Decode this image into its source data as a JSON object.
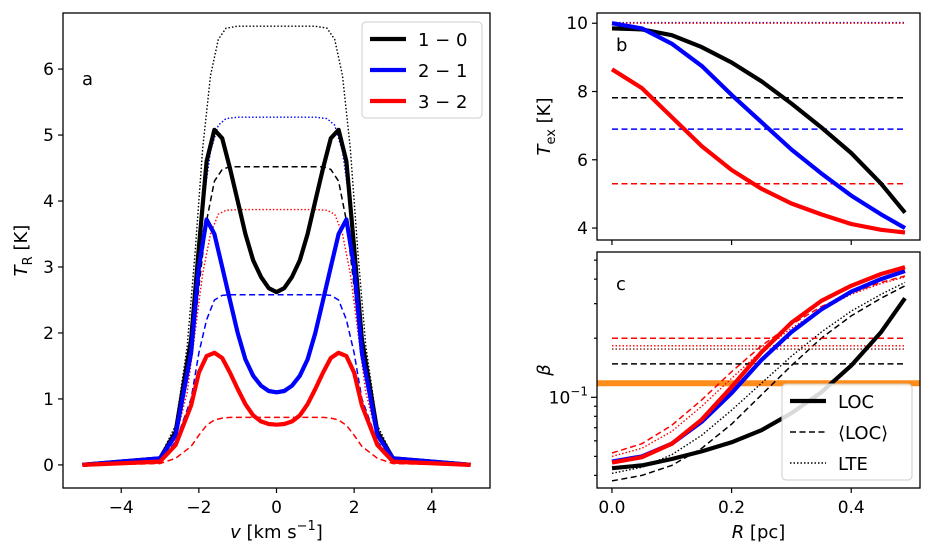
{
  "chart_data": [
    {
      "type": "line",
      "panel_label": "a",
      "xlabel": "v [km s^-1]",
      "ylabel": "T_R [K]",
      "xlim": [
        -5.5,
        5.5
      ],
      "ylim": [
        -0.35,
        6.85
      ],
      "xticks": [
        -4,
        -2,
        0,
        2,
        4
      ],
      "yticks": [
        0,
        1,
        2,
        3,
        4,
        5,
        6
      ],
      "legend_position": "top-right",
      "legend": [
        "1 − 0",
        "2 − 1",
        "3 − 2"
      ],
      "series": [
        {
          "name": "1 − 0",
          "style": "solid",
          "color": "#000000",
          "x": [
            -5,
            -3,
            -2.6,
            -2.2,
            -2,
            -1.8,
            -1.6,
            -1.4,
            -1.2,
            -1,
            -0.8,
            -0.6,
            -0.4,
            -0.2,
            0,
            0.2,
            0.4,
            0.6,
            0.8,
            1,
            1.2,
            1.4,
            1.6,
            1.8,
            2,
            2.2,
            2.6,
            3,
            5
          ],
          "y": [
            0,
            0.1,
            0.5,
            1.9,
            3.3,
            4.6,
            5.08,
            4.95,
            4.5,
            4.0,
            3.5,
            3.1,
            2.85,
            2.68,
            2.62,
            2.68,
            2.85,
            3.1,
            3.5,
            4.0,
            4.5,
            4.95,
            5.08,
            4.6,
            3.3,
            1.9,
            0.5,
            0.1,
            0
          ]
        },
        {
          "name": "2 − 1",
          "style": "solid",
          "color": "#0000ff",
          "x": [
            -5,
            -3,
            -2.6,
            -2.2,
            -2,
            -1.8,
            -1.6,
            -1.4,
            -1.2,
            -1,
            -0.8,
            -0.6,
            -0.4,
            -0.2,
            0,
            0.2,
            0.4,
            0.6,
            0.8,
            1,
            1.2,
            1.4,
            1.6,
            1.8,
            2,
            2.2,
            2.6,
            3,
            5
          ],
          "y": [
            0,
            0.1,
            0.45,
            1.7,
            3.0,
            3.72,
            3.5,
            3.0,
            2.5,
            2.0,
            1.6,
            1.35,
            1.2,
            1.12,
            1.1,
            1.12,
            1.2,
            1.35,
            1.6,
            2.0,
            2.5,
            3.0,
            3.5,
            3.72,
            3.0,
            1.7,
            0.45,
            0.1,
            0
          ]
        },
        {
          "name": "3 − 2",
          "style": "solid",
          "color": "#ff0000",
          "x": [
            -5,
            -3,
            -2.6,
            -2.2,
            -2,
            -1.8,
            -1.6,
            -1.4,
            -1.2,
            -1,
            -0.8,
            -0.6,
            -0.4,
            -0.2,
            0,
            0.2,
            0.4,
            0.6,
            0.8,
            1,
            1.2,
            1.4,
            1.6,
            1.8,
            2,
            2.2,
            2.6,
            3,
            5
          ],
          "y": [
            0,
            0.05,
            0.3,
            0.9,
            1.4,
            1.65,
            1.7,
            1.62,
            1.4,
            1.15,
            0.92,
            0.75,
            0.66,
            0.62,
            0.61,
            0.62,
            0.66,
            0.75,
            0.92,
            1.15,
            1.4,
            1.62,
            1.7,
            1.65,
            1.4,
            0.9,
            0.3,
            0.05,
            0
          ]
        },
        {
          "name": "",
          "style": "dashed",
          "color": "#000000",
          "x": [
            -5,
            -3,
            -2.6,
            -2.2,
            -2,
            -1.8,
            -1.6,
            -1.4,
            -1.2,
            -1,
            0,
            1,
            1.2,
            1.4,
            1.6,
            1.8,
            2,
            2.2,
            2.6,
            3,
            5
          ],
          "y": [
            0,
            0.1,
            0.5,
            1.6,
            2.7,
            3.7,
            4.3,
            4.48,
            4.52,
            4.52,
            4.52,
            4.52,
            4.52,
            4.48,
            4.3,
            3.7,
            2.7,
            1.6,
            0.5,
            0.1,
            0
          ]
        },
        {
          "name": "",
          "style": "dashed",
          "color": "#0000ff",
          "x": [
            -5,
            -3,
            -2.6,
            -2.2,
            -2,
            -1.8,
            -1.6,
            -1.4,
            -1.2,
            -1,
            0,
            1,
            1.2,
            1.4,
            1.6,
            1.8,
            2,
            2.2,
            2.6,
            3,
            5
          ],
          "y": [
            0,
            0.08,
            0.35,
            1.0,
            1.7,
            2.2,
            2.5,
            2.57,
            2.58,
            2.58,
            2.58,
            2.58,
            2.58,
            2.57,
            2.5,
            2.2,
            1.7,
            1.0,
            0.35,
            0.08,
            0
          ]
        },
        {
          "name": "",
          "style": "dashed",
          "color": "#ff0000",
          "x": [
            -5,
            -3,
            -2.6,
            -2.2,
            -2,
            -1.8,
            -1.6,
            -1.4,
            -1.2,
            -1,
            0,
            1,
            1.2,
            1.4,
            1.6,
            1.8,
            2,
            2.2,
            2.6,
            3,
            5
          ],
          "y": [
            0,
            0.02,
            0.1,
            0.28,
            0.45,
            0.6,
            0.68,
            0.71,
            0.72,
            0.72,
            0.72,
            0.72,
            0.72,
            0.71,
            0.68,
            0.6,
            0.45,
            0.28,
            0.1,
            0.02,
            0
          ]
        },
        {
          "name": "",
          "style": "dotted",
          "color": "#000000",
          "x": [
            -5,
            -3,
            -2.6,
            -2.3,
            -2.1,
            -1.9,
            -1.7,
            -1.5,
            -1.3,
            -1,
            0,
            1,
            1.3,
            1.5,
            1.7,
            1.9,
            2.1,
            2.3,
            2.6,
            3,
            5
          ],
          "y": [
            0,
            0.12,
            0.6,
            1.8,
            3.2,
            4.8,
            5.9,
            6.45,
            6.62,
            6.65,
            6.65,
            6.65,
            6.62,
            6.45,
            5.9,
            4.8,
            3.2,
            1.8,
            0.6,
            0.12,
            0
          ]
        },
        {
          "name": "",
          "style": "dotted",
          "color": "#0000ff",
          "x": [
            -5,
            -3,
            -2.6,
            -2.3,
            -2.1,
            -1.9,
            -1.7,
            -1.5,
            -1.3,
            -1,
            0,
            1,
            1.3,
            1.5,
            1.7,
            1.9,
            2.1,
            2.3,
            2.6,
            3,
            5
          ],
          "y": [
            0,
            0.1,
            0.5,
            1.5,
            2.7,
            3.9,
            4.75,
            5.15,
            5.25,
            5.27,
            5.27,
            5.27,
            5.25,
            5.15,
            4.75,
            3.9,
            2.7,
            1.5,
            0.5,
            0.1,
            0
          ]
        },
        {
          "name": "",
          "style": "dotted",
          "color": "#ff0000",
          "x": [
            -5,
            -3,
            -2.6,
            -2.3,
            -2.1,
            -1.9,
            -1.7,
            -1.5,
            -1.3,
            -1,
            0,
            1,
            1.3,
            1.5,
            1.7,
            1.9,
            2.1,
            2.3,
            2.6,
            3,
            5
          ],
          "y": [
            0,
            0.08,
            0.4,
            1.1,
            2.0,
            2.9,
            3.5,
            3.8,
            3.86,
            3.87,
            3.87,
            3.87,
            3.86,
            3.8,
            3.5,
            2.9,
            2.0,
            1.1,
            0.4,
            0.08,
            0
          ]
        }
      ]
    },
    {
      "type": "line",
      "panel_label": "b",
      "xlabel": "",
      "ylabel": "T_ex [K]",
      "xlim": [
        -0.025,
        0.515
      ],
      "ylim": [
        3.65,
        10.3
      ],
      "yticks": [
        4,
        6,
        8,
        10
      ],
      "series": [
        {
          "name": "",
          "style": "solid",
          "color": "#000000",
          "x": [
            0,
            0.05,
            0.1,
            0.15,
            0.2,
            0.25,
            0.3,
            0.35,
            0.4,
            0.45,
            0.49
          ],
          "y": [
            9.85,
            9.82,
            9.65,
            9.3,
            8.85,
            8.3,
            7.65,
            6.95,
            6.2,
            5.3,
            4.45
          ]
        },
        {
          "name": "",
          "style": "solid",
          "color": "#0000ff",
          "x": [
            0,
            0.05,
            0.1,
            0.15,
            0.2,
            0.25,
            0.3,
            0.35,
            0.4,
            0.45,
            0.49
          ],
          "y": [
            10.0,
            9.85,
            9.4,
            8.75,
            7.9,
            7.1,
            6.3,
            5.6,
            4.95,
            4.4,
            4.0
          ]
        },
        {
          "name": "",
          "style": "solid",
          "color": "#ff0000",
          "x": [
            0,
            0.05,
            0.1,
            0.15,
            0.2,
            0.25,
            0.3,
            0.35,
            0.4,
            0.45,
            0.49
          ],
          "y": [
            8.65,
            8.1,
            7.25,
            6.4,
            5.7,
            5.15,
            4.72,
            4.4,
            4.12,
            3.95,
            3.87
          ]
        },
        {
          "name": "",
          "style": "dashed",
          "color": "#000000",
          "x": [
            0,
            0.49
          ],
          "y": [
            7.82,
            7.82
          ]
        },
        {
          "name": "",
          "style": "dashed",
          "color": "#0000ff",
          "x": [
            0,
            0.49
          ],
          "y": [
            6.9,
            6.9
          ]
        },
        {
          "name": "",
          "style": "dashed",
          "color": "#ff0000",
          "x": [
            0,
            0.49
          ],
          "y": [
            5.3,
            5.3
          ]
        },
        {
          "name": "",
          "style": "dotted",
          "color": "#0000ff",
          "x": [
            0,
            0.49
          ],
          "y": [
            10.02,
            10.02
          ]
        },
        {
          "name": "",
          "style": "dotted",
          "color": "#ff0000",
          "x": [
            0,
            0.49
          ],
          "y": [
            10.0,
            10.0
          ]
        }
      ]
    },
    {
      "type": "line",
      "panel_label": "c",
      "xlabel": "R [pc]",
      "ylabel": "β",
      "scale": "log",
      "xlim": [
        -0.025,
        0.515
      ],
      "ylim": [
        0.0345,
        0.55
      ],
      "xticks": [
        0.0,
        0.2,
        0.4
      ],
      "ytick_label": "10^-1",
      "legend_position": "bottom-right",
      "legend": [
        "LOC",
        "⟨LOC⟩",
        "LTE"
      ],
      "series": [
        {
          "name": "LOC",
          "style": "solid",
          "color": "#000000",
          "x": [
            0,
            0.05,
            0.1,
            0.15,
            0.2,
            0.25,
            0.3,
            0.35,
            0.4,
            0.45,
            0.49
          ],
          "y": [
            0.0435,
            0.045,
            0.0485,
            0.053,
            0.059,
            0.068,
            0.083,
            0.106,
            0.145,
            0.215,
            0.32
          ]
        },
        {
          "name": "",
          "style": "solid",
          "color": "#0000ff",
          "x": [
            0,
            0.05,
            0.1,
            0.15,
            0.2,
            0.25,
            0.3,
            0.35,
            0.4,
            0.45,
            0.49
          ],
          "y": [
            0.047,
            0.05,
            0.058,
            0.075,
            0.105,
            0.155,
            0.215,
            0.28,
            0.345,
            0.4,
            0.44
          ]
        },
        {
          "name": "",
          "style": "solid",
          "color": "#ff0000",
          "x": [
            0,
            0.05,
            0.1,
            0.15,
            0.2,
            0.25,
            0.3,
            0.35,
            0.4,
            0.45,
            0.49
          ],
          "y": [
            0.0465,
            0.0495,
            0.058,
            0.077,
            0.113,
            0.17,
            0.24,
            0.31,
            0.37,
            0.425,
            0.46
          ]
        },
        {
          "name": "⟨LOC⟩",
          "style": "dashed",
          "color": "#000000",
          "x": [
            0,
            0.05,
            0.1,
            0.15,
            0.2,
            0.25,
            0.3,
            0.35,
            0.4,
            0.45,
            0.49
          ],
          "y": [
            0.0375,
            0.04,
            0.045,
            0.055,
            0.073,
            0.103,
            0.145,
            0.2,
            0.26,
            0.32,
            0.37
          ]
        },
        {
          "name": "",
          "style": "dashed",
          "color": "#ff0000",
          "x": [
            0,
            0.05,
            0.1,
            0.15,
            0.2,
            0.25,
            0.3,
            0.35,
            0.4,
            0.45,
            0.49
          ],
          "y": [
            0.052,
            0.058,
            0.072,
            0.097,
            0.135,
            0.183,
            0.235,
            0.29,
            0.34,
            0.385,
            0.415
          ]
        },
        {
          "name": "LTE",
          "style": "dotted",
          "color": "#000000",
          "x": [
            0,
            0.05,
            0.1,
            0.15,
            0.2,
            0.25,
            0.3,
            0.35,
            0.4,
            0.45,
            0.49
          ],
          "y": [
            0.041,
            0.044,
            0.051,
            0.064,
            0.086,
            0.118,
            0.162,
            0.215,
            0.275,
            0.335,
            0.385
          ]
        },
        {
          "name": "",
          "style": "dotted",
          "color": "#ff0000",
          "x": [
            0,
            0.05,
            0.1,
            0.15,
            0.2,
            0.25,
            0.3,
            0.35,
            0.4,
            0.45,
            0.49
          ],
          "y": [
            0.05,
            0.055,
            0.067,
            0.09,
            0.125,
            0.172,
            0.225,
            0.28,
            0.335,
            0.38,
            0.41
          ]
        },
        {
          "name": "",
          "style": "dashed",
          "color": "#000000",
          "x": [
            0,
            0.49
          ],
          "y": [
            0.148,
            0.148
          ]
        },
        {
          "name": "",
          "style": "dashed",
          "color": "#ff0000",
          "x": [
            0,
            0.49
          ],
          "y": [
            0.2,
            0.2
          ]
        },
        {
          "name": "",
          "style": "dotted",
          "color": "#ff0000",
          "x": [
            0,
            0.49
          ],
          "y": [
            0.183,
            0.183
          ]
        },
        {
          "name": "",
          "style": "dotted",
          "color": "#8b1a1a",
          "x": [
            0,
            0.49
          ],
          "y": [
            0.176,
            0.176
          ]
        },
        {
          "name": "",
          "style": "thick",
          "color": "#ff8c1a",
          "x": [
            -0.025,
            0.515
          ],
          "y": [
            0.118,
            0.118
          ]
        }
      ]
    }
  ]
}
